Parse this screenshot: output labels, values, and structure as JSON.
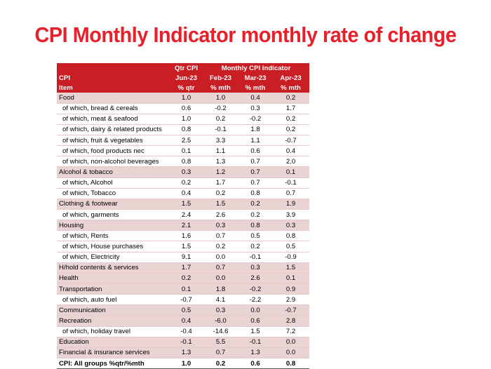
{
  "title": "CPI Monthly Indicator monthly rate of change",
  "header": {
    "row1": [
      "",
      "Qtr CPI",
      "Monthly CPI Indicator"
    ],
    "row2": [
      "CPI",
      "Jun-23",
      "Feb-23",
      "Mar-23",
      "Apr-23"
    ],
    "row3": [
      "Item",
      "% qtr",
      "% mth",
      "% mth",
      "% mth"
    ]
  },
  "rows": [
    {
      "type": "main",
      "label": "Food",
      "v": [
        "1.0",
        "1.0",
        "0.4",
        "0.2"
      ]
    },
    {
      "type": "sub",
      "label": "of which, bread & cereals",
      "v": [
        "0.6",
        "-0.2",
        "0.3",
        "1.7"
      ]
    },
    {
      "type": "sub",
      "label": "of which, meat & seafood",
      "v": [
        "1.0",
        "0.2",
        "-0.2",
        "0.2"
      ]
    },
    {
      "type": "sub",
      "label": "of which, dairy & related products",
      "v": [
        "0.8",
        "-0.1",
        "1.8",
        "0.2"
      ]
    },
    {
      "type": "sub",
      "label": "of which, fruit & vegetables",
      "v": [
        "2.5",
        "3.3",
        "1.1",
        "-0.7"
      ]
    },
    {
      "type": "sub",
      "label": "of which, food products nec",
      "v": [
        "0.1",
        "1.1",
        "0.6",
        "0.4"
      ]
    },
    {
      "type": "sub",
      "label": "of which, non-alcohol beverages",
      "v": [
        "0.8",
        "1.3",
        "0.7",
        "2.0"
      ]
    },
    {
      "type": "main",
      "label": "Alcohol & tobacco",
      "v": [
        "0.3",
        "1.2",
        "0.7",
        "0.1"
      ]
    },
    {
      "type": "sub",
      "label": "of which, Alcohol",
      "v": [
        "0.2",
        "1.7",
        "0.7",
        "-0.1"
      ]
    },
    {
      "type": "sub",
      "label": "of which, Tobacco",
      "v": [
        "0.4",
        "0.2",
        "0.8",
        "0.7"
      ]
    },
    {
      "type": "main",
      "label": "Clothing & footwear",
      "v": [
        "1.5",
        "1.5",
        "0.2",
        "1.9"
      ]
    },
    {
      "type": "sub",
      "label": "of which, garments",
      "v": [
        "2.4",
        "2.6",
        "0.2",
        "3.9"
      ]
    },
    {
      "type": "main",
      "label": "Housing",
      "v": [
        "2.1",
        "0.3",
        "0.8",
        "0.3"
      ]
    },
    {
      "type": "sub",
      "label": "of which, Rents",
      "v": [
        "1.6",
        "0.7",
        "0.5",
        "0.8"
      ]
    },
    {
      "type": "sub",
      "label": "of which, House purchases",
      "v": [
        "1.5",
        "0.2",
        "0.2",
        "0.5"
      ]
    },
    {
      "type": "sub",
      "label": "of which, Electricity",
      "v": [
        "9.1",
        "0.0",
        "-0.1",
        "-0.9"
      ]
    },
    {
      "type": "main",
      "label": "H/hold contents & services",
      "v": [
        "1.7",
        "0.7",
        "0.3",
        "1.5"
      ]
    },
    {
      "type": "main",
      "label": "Health",
      "v": [
        "0.2",
        "0.0",
        "2.6",
        "0.1"
      ]
    },
    {
      "type": "main",
      "label": "Transportation",
      "v": [
        "0.1",
        "1.8",
        "-0.2",
        "0.9"
      ]
    },
    {
      "type": "sub",
      "label": "of which, auto fuel",
      "v": [
        "-0.7",
        "4.1",
        "-2.2",
        "2.9"
      ]
    },
    {
      "type": "main",
      "label": "Communication",
      "v": [
        "0.5",
        "0.3",
        "0.0",
        "-0.7"
      ]
    },
    {
      "type": "main",
      "label": "Recreation",
      "v": [
        "0.4",
        "-6.0",
        "0.6",
        "2.8"
      ]
    },
    {
      "type": "sub",
      "label": "of which, holiday travel",
      "v": [
        "-0.4",
        "-14.6",
        "1.5",
        "7.2"
      ]
    },
    {
      "type": "main",
      "label": "Education",
      "v": [
        "-0.1",
        "5.5",
        "-0.1",
        "0.0"
      ]
    },
    {
      "type": "main",
      "label": "Financial & insurance services",
      "v": [
        "1.3",
        "0.7",
        "1.3",
        "0.0"
      ]
    },
    {
      "type": "total",
      "label": "CPI: All groups %qtr/%mth",
      "v": [
        "1.0",
        "0.2",
        "0.6",
        "0.8"
      ]
    }
  ]
}
